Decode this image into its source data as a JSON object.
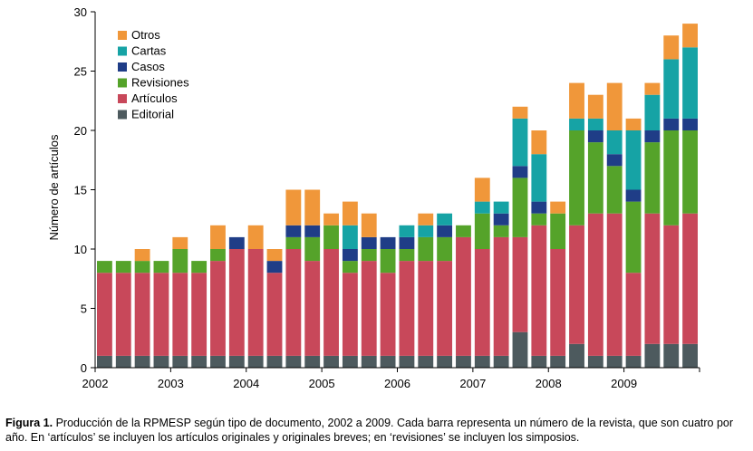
{
  "chart_data": {
    "type": "bar",
    "stacked": true,
    "ylabel": "Número de artículos",
    "ylim": [
      0,
      30
    ],
    "yticks": [
      0,
      5,
      10,
      15,
      20,
      25,
      30
    ],
    "year_labels": [
      "2002",
      "2003",
      "2004",
      "2005",
      "2006",
      "2007",
      "2008",
      "2009"
    ],
    "issues_per_year": 4,
    "legend_position": "top-left",
    "series": [
      {
        "name": "Editorial",
        "color": "#4d5a5e",
        "values": [
          1,
          1,
          1,
          1,
          1,
          1,
          1,
          1,
          1,
          1,
          1,
          1,
          1,
          1,
          1,
          1,
          1,
          1,
          1,
          1,
          1,
          1,
          3,
          1,
          1,
          2,
          1,
          1,
          1,
          2,
          2,
          2
        ]
      },
      {
        "name": "Artículos",
        "color": "#c8485a",
        "values": [
          7,
          7,
          7,
          7,
          7,
          7,
          8,
          9,
          9,
          7,
          9,
          8,
          9,
          7,
          8,
          7,
          8,
          8,
          8,
          10,
          9,
          10,
          8,
          11,
          9,
          10,
          12,
          12,
          7,
          11,
          10,
          11
        ]
      },
      {
        "name": "Revisiones",
        "color": "#55a32a",
        "values": [
          1,
          1,
          1,
          1,
          2,
          1,
          1,
          0,
          0,
          0,
          1,
          2,
          2,
          1,
          1,
          2,
          1,
          2,
          2,
          1,
          3,
          1,
          5,
          1,
          3,
          8,
          6,
          4,
          6,
          6,
          8,
          7
        ]
      },
      {
        "name": "Casos",
        "color": "#1f3d87",
        "values": [
          0,
          0,
          0,
          0,
          0,
          0,
          0,
          1,
          0,
          1,
          1,
          1,
          0,
          1,
          1,
          1,
          1,
          0,
          1,
          0,
          0,
          1,
          1,
          1,
          0,
          0,
          1,
          1,
          1,
          1,
          1,
          1
        ]
      },
      {
        "name": "Cartas",
        "color": "#16a3a5",
        "values": [
          0,
          0,
          0,
          0,
          0,
          0,
          0,
          0,
          0,
          0,
          0,
          0,
          0,
          2,
          0,
          0,
          1,
          1,
          1,
          0,
          1,
          1,
          4,
          4,
          0,
          1,
          1,
          2,
          5,
          3,
          5,
          6
        ]
      },
      {
        "name": "Otros",
        "color": "#f0973a",
        "values": [
          0,
          0,
          1,
          0,
          1,
          0,
          2,
          0,
          2,
          1,
          3,
          3,
          1,
          2,
          2,
          0,
          0,
          1,
          0,
          0,
          2,
          0,
          1,
          2,
          1,
          3,
          2,
          4,
          1,
          1,
          2,
          2
        ]
      }
    ]
  },
  "caption": {
    "label": "Figura 1.",
    "text": " Producción de la RPMESP según tipo de documento, 2002 a 2009. Cada barra representa un número de la revista, que son cuatro por año. En ‘artículos’ se incluyen los artículos originales y originales breves; en ‘revisiones’ se incluyen los simposios."
  }
}
